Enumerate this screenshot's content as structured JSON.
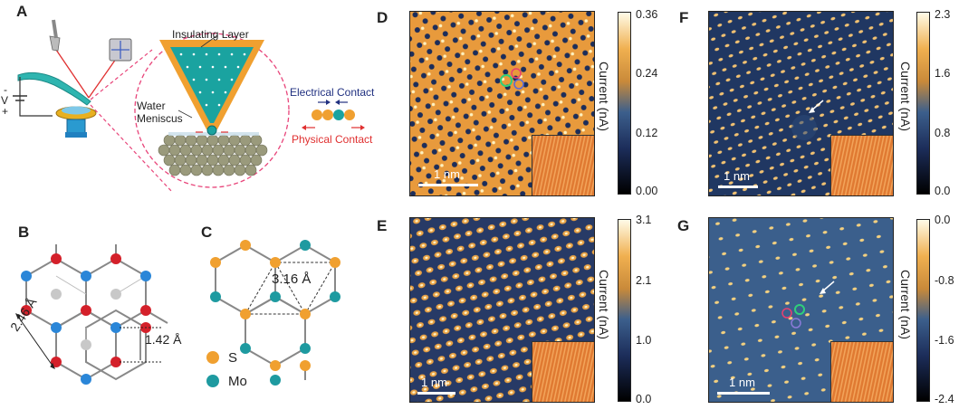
{
  "panel_letters": {
    "a": "A",
    "b": "B",
    "c": "C",
    "d": "D",
    "e": "E",
    "f": "F",
    "g": "G"
  },
  "schematic": {
    "insulating_layer": "Insulating Layer",
    "water": "Water",
    "meniscus": "Meniscus",
    "v_minus": "-",
    "v_label": "V",
    "v_plus": "+",
    "electrical_contact": "Electrical Contact",
    "physical_contact": "Physical Contact"
  },
  "lattice_b": {
    "dim1": "2.46 Å",
    "dim2": "1.42 Å"
  },
  "lattice_c": {
    "dim": "3.16 Å",
    "legend_s": "S",
    "legend_mo": "Mo"
  },
  "colorbars": {
    "ylabel": "Current (nA)",
    "d": {
      "ticks": [
        "0.36",
        "0.24",
        "0.12",
        "0.00"
      ]
    },
    "e": {
      "ticks": [
        "3.1",
        "2.1",
        "1.0",
        "0.0"
      ]
    },
    "f": {
      "ticks": [
        "2.3",
        "1.6",
        "0.8",
        "0.0"
      ]
    },
    "g": {
      "ticks": [
        "0.0",
        "-0.8",
        "-1.6",
        "-2.4"
      ]
    }
  },
  "scale_bars": {
    "d": "1 nm",
    "e": "1 nm",
    "f": "1 nm",
    "g": "1 nm"
  },
  "colors": {
    "s_atom": "#f0a030",
    "mo_atom": "#1e9aa0",
    "c_red": "#d4202a",
    "c_blue": "#2a86d8",
    "c_gray": "#c8c8c8",
    "accent_pink": "#e8457a"
  }
}
